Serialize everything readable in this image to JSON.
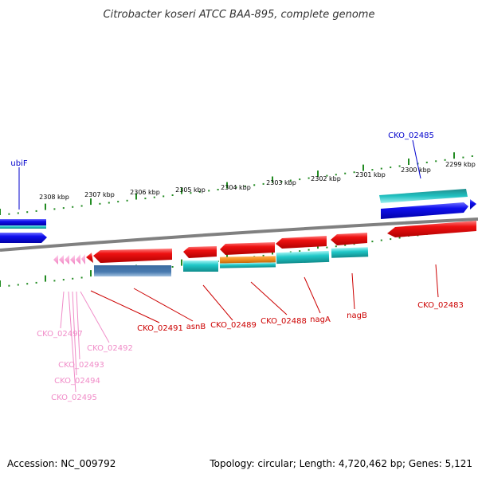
{
  "title": "Citrobacter koseri ATCC BAA-895, complete genome",
  "footer": {
    "accession": "Accession: NC_009792",
    "summary": "Topology: circular; Length: 4,720,462 bp; Genes: 5,121"
  },
  "scale_labels": [
    "2308 kbp",
    "2307 kbp",
    "2306 kbp",
    "2305 kbp",
    "2304 kbp",
    "2303 kbp",
    "2302 kbp",
    "2301 kbp",
    "2300 kbp",
    "2299 kbp"
  ],
  "gene_labels": {
    "ubiF": "ubiF",
    "CKO_02485": "CKO_02485",
    "CKO_02483": "CKO_02483",
    "nagB": "nagB",
    "nagA": "nagA",
    "CKO_02488": "CKO_02488",
    "CKO_02489": "CKO_02489",
    "asnB": "asnB",
    "CKO_02491": "CKO_02491",
    "CKO_02492": "CKO_02492",
    "CKO_02493": "CKO_02493",
    "CKO_02494": "CKO_02494",
    "CKO_02495": "CKO_02495",
    "CKO_02497": "CKO_02497"
  },
  "colors": {
    "cds_red": "#e31a1c",
    "cds_blue": "#1414e6",
    "rna_cyan": "#20c4c4",
    "rna_steel": "#4a7bb0",
    "rna_orange": "#f0901e",
    "pseudo_pink": "#f4a0d0",
    "label_red": "#cc0000",
    "label_blue": "#0000cc",
    "label_pink": "#f08cc8",
    "tick_green": "#228b22",
    "backbone": "#808080"
  }
}
